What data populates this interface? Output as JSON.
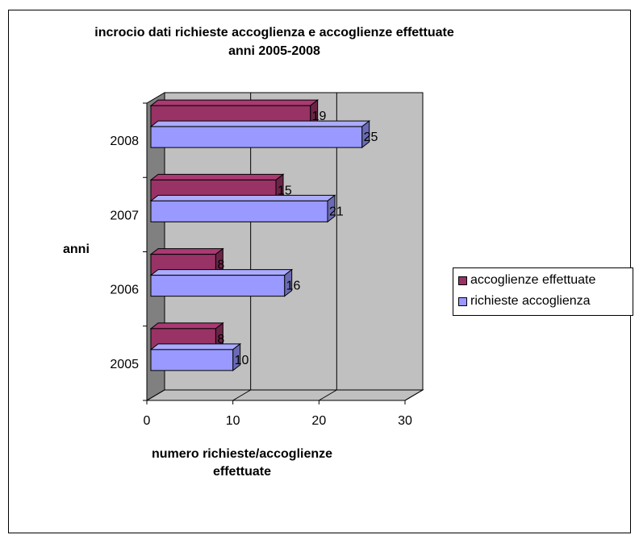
{
  "chart_data": {
    "type": "bar",
    "orientation": "horizontal",
    "style": "3d",
    "title": [
      "incrocio dati richieste accoglienza e accoglienze effettuate",
      "anni 2005-2008"
    ],
    "xlabel": [
      "numero richieste/accoglienze",
      "effettuate"
    ],
    "ylabel": "anni",
    "categories": [
      "2005",
      "2006",
      "2007",
      "2008"
    ],
    "xlim": [
      0,
      30
    ],
    "xticks": [
      "0",
      "10",
      "20",
      "30"
    ],
    "grid": true,
    "legend_position": "right",
    "series": [
      {
        "name": "accoglienze effettuate",
        "values": [
          8,
          8,
          15,
          19
        ],
        "color": "#993366"
      },
      {
        "name": "richieste accoglienza",
        "values": [
          10,
          16,
          21,
          25
        ],
        "color": "#9999ff"
      }
    ]
  }
}
